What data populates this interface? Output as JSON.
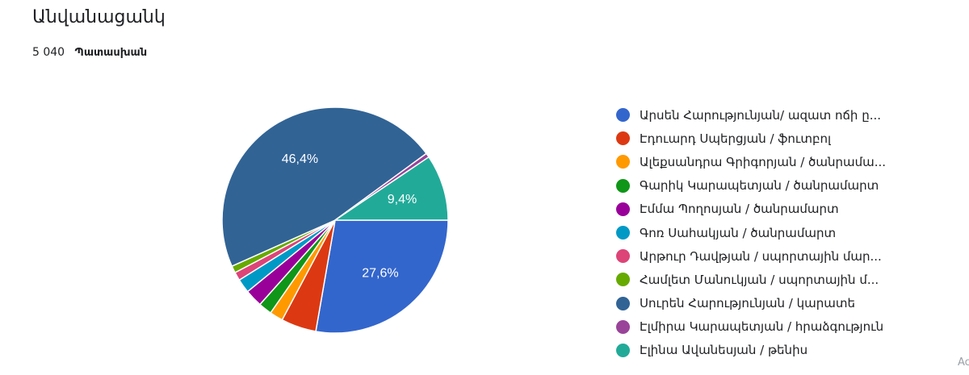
{
  "header": {
    "title": "Անվանացանկ",
    "response_count": "5 040",
    "response_label": "Պատասխան"
  },
  "corner_text": "Ac",
  "chart_data": {
    "type": "pie",
    "title": "Անվանացանկ",
    "legend_position": "right",
    "series": [
      {
        "name": "Արսեն Հարությունյան/ ազատ ոճի ը...",
        "value": 27.6,
        "label": "27,6%",
        "color": "#3366cc"
      },
      {
        "name": "Էդուարդ Սպերցյան / ֆուտբոլ",
        "value": 5.0,
        "label": "",
        "color": "#dc3912"
      },
      {
        "name": "Ալեքսանդրա Գրիգորյան / ծանրամա...",
        "value": 1.9,
        "label": "",
        "color": "#ff9900"
      },
      {
        "name": "Գարիկ Կարապետյան / ծանրամարտ",
        "value": 1.9,
        "label": "",
        "color": "#109618"
      },
      {
        "name": "Էմմա Պողոսյան / ծանրամարտ",
        "value": 2.5,
        "label": "",
        "color": "#990099"
      },
      {
        "name": "Գոռ Սահակյան / ծանրամարտ",
        "value": 2.0,
        "label": "",
        "color": "#0099c6"
      },
      {
        "name": "Արթուր Դավթյան / սպորտային մար...",
        "value": 1.2,
        "label": "",
        "color": "#dd4477"
      },
      {
        "name": "Համլետ Մանուկյան / սպորտային մ...",
        "value": 1.0,
        "label": "",
        "color": "#66aa00"
      },
      {
        "name": "Սուրեն Հարությունյան / կարատե",
        "value": 46.4,
        "label": "46,4%",
        "color": "#316395"
      },
      {
        "name": "Էլմիրա Կարապետյան / հրաձգություն",
        "value": 0.6,
        "label": "",
        "color": "#994499"
      },
      {
        "name": "Էլինա Ավանեսյան / թենիս",
        "value": 9.4,
        "label": "9,4%",
        "color": "#22aa99"
      }
    ]
  }
}
